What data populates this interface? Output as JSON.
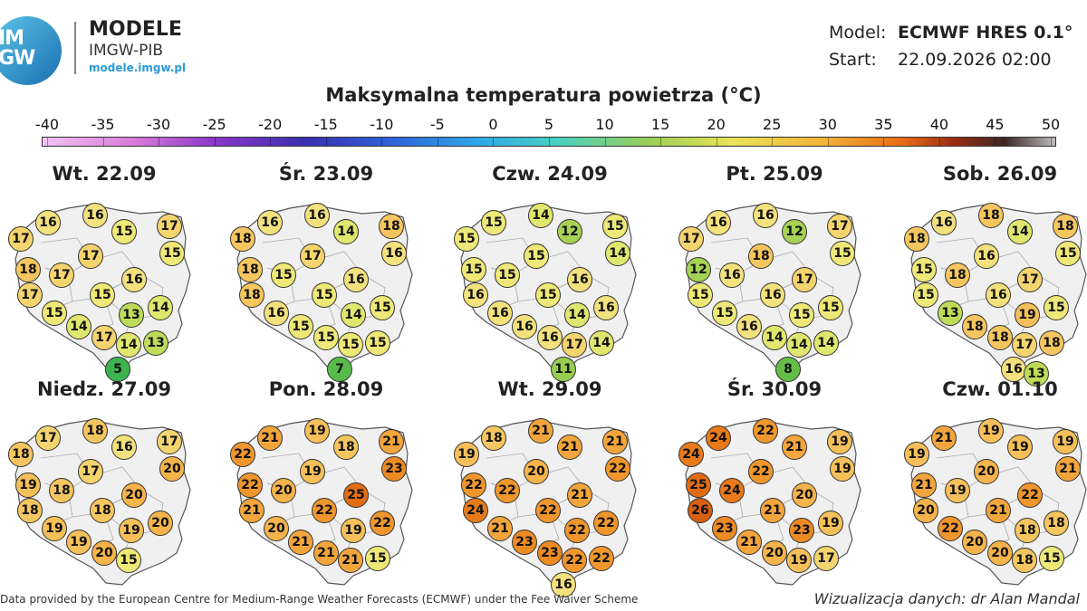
{
  "brand": {
    "logo_text_1": "IM",
    "logo_text_2": "GW",
    "title": "MODELE",
    "subtitle": "IMGW-PIB",
    "url": "modele.imgw.pl"
  },
  "meta": {
    "model_label": "Model:",
    "model_value": "ECMWF HRES 0.1°",
    "start_label": "Start:",
    "start_value": "22.09.2026 02:00"
  },
  "title": "Maksymalna temperatura powietrza (°C)",
  "scale": {
    "ticks": [
      -40,
      -35,
      -30,
      -25,
      -20,
      -15,
      -10,
      -5,
      0,
      5,
      10,
      15,
      20,
      25,
      30,
      35,
      40,
      45,
      50
    ]
  },
  "panels": [
    {
      "date": "Wt. 22.09",
      "values": [
        16,
        16,
        17,
        15,
        17,
        17,
        15,
        18,
        17,
        16,
        17,
        15,
        13,
        14,
        15,
        14,
        17,
        14,
        13,
        5
      ]
    },
    {
      "date": "Śr. 23.09",
      "values": [
        16,
        16,
        18,
        14,
        18,
        17,
        16,
        18,
        15,
        16,
        18,
        15,
        14,
        15,
        16,
        15,
        15,
        15,
        15,
        7
      ]
    },
    {
      "date": "Czw. 24.09",
      "values": [
        15,
        14,
        15,
        12,
        15,
        15,
        14,
        15,
        15,
        16,
        16,
        15,
        14,
        16,
        16,
        16,
        16,
        17,
        14,
        11
      ]
    },
    {
      "date": "Pt. 25.09",
      "values": [
        16,
        16,
        17,
        12,
        17,
        18,
        15,
        12,
        16,
        17,
        15,
        16,
        15,
        15,
        15,
        16,
        14,
        14,
        14,
        8
      ]
    },
    {
      "date": "Sob. 26.09",
      "values": [
        16,
        18,
        18,
        14,
        18,
        16,
        15,
        15,
        18,
        17,
        15,
        16,
        19,
        15,
        13,
        18,
        18,
        17,
        18,
        16,
        13
      ]
    },
    {
      "date": "Niedz. 27.09",
      "values": [
        17,
        18,
        18,
        16,
        17,
        17,
        20,
        19,
        18,
        20,
        18,
        18,
        19,
        20,
        19,
        19,
        20,
        15
      ]
    },
    {
      "date": "Pon. 28.09",
      "values": [
        21,
        19,
        22,
        18,
        21,
        19,
        23,
        22,
        20,
        25,
        21,
        22,
        19,
        22,
        20,
        21,
        21,
        21,
        15
      ]
    },
    {
      "date": "Wt. 29.09",
      "values": [
        18,
        21,
        19,
        21,
        21,
        20,
        22,
        22,
        22,
        21,
        24,
        22,
        22,
        22,
        21,
        23,
        23,
        22,
        22,
        16
      ]
    },
    {
      "date": "Śr. 30.09",
      "values": [
        24,
        22,
        24,
        21,
        19,
        22,
        19,
        25,
        24,
        20,
        26,
        21,
        23,
        19,
        23,
        21,
        20,
        19,
        17
      ]
    },
    {
      "date": "Czw. 01.10",
      "values": [
        21,
        19,
        19,
        19,
        19,
        20,
        21,
        21,
        19,
        22,
        20,
        21,
        18,
        18,
        22,
        20,
        20,
        18,
        15
      ]
    }
  ],
  "footer": {
    "left": "Data provided by the European Centre for Medium-Range Weather Forecasts (ECMWF) under the Fee Waiver Scheme",
    "right": "Wizualizacja danych: dr Alan Mandal"
  },
  "colors": {
    "background": "#ffffff",
    "map_fill": "#f0f0f0",
    "map_border": "#555555",
    "accent": "#2a9bd6"
  }
}
